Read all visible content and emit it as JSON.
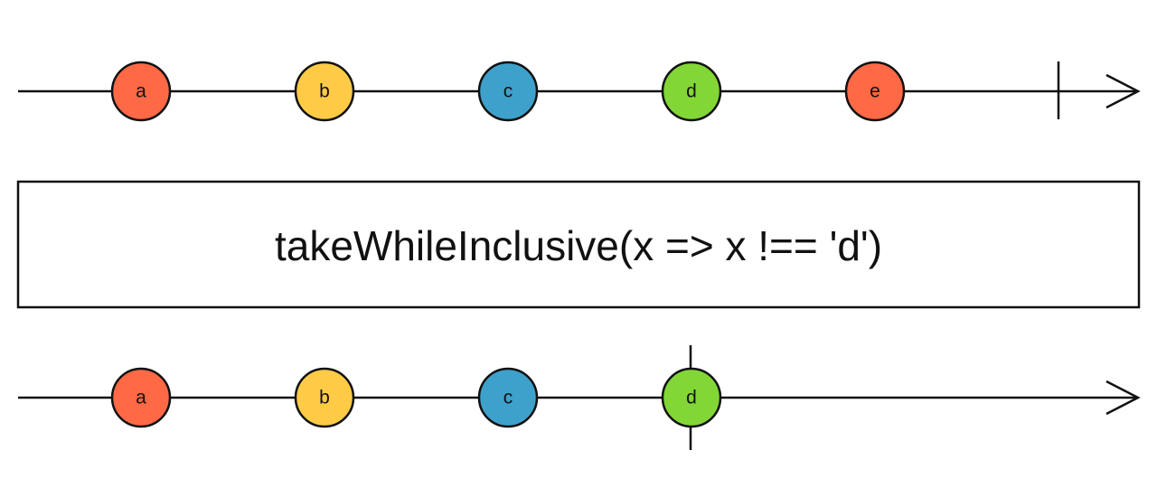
{
  "operator": {
    "label": "takeWhileInclusive(x => x !== 'd')"
  },
  "input_stream": {
    "marbles": [
      {
        "label": "a",
        "color": "#FF6946"
      },
      {
        "label": "b",
        "color": "#FFCB46"
      },
      {
        "label": "c",
        "color": "#3EA1CB"
      },
      {
        "label": "d",
        "color": "#82D736"
      },
      {
        "label": "e",
        "color": "#FF6946"
      }
    ],
    "completes": true
  },
  "output_stream": {
    "marbles": [
      {
        "label": "a",
        "color": "#FF6946"
      },
      {
        "label": "b",
        "color": "#FFCB46"
      },
      {
        "label": "c",
        "color": "#3EA1CB"
      },
      {
        "label": "d",
        "color": "#82D736"
      }
    ],
    "completes_on_last_marble": true
  }
}
